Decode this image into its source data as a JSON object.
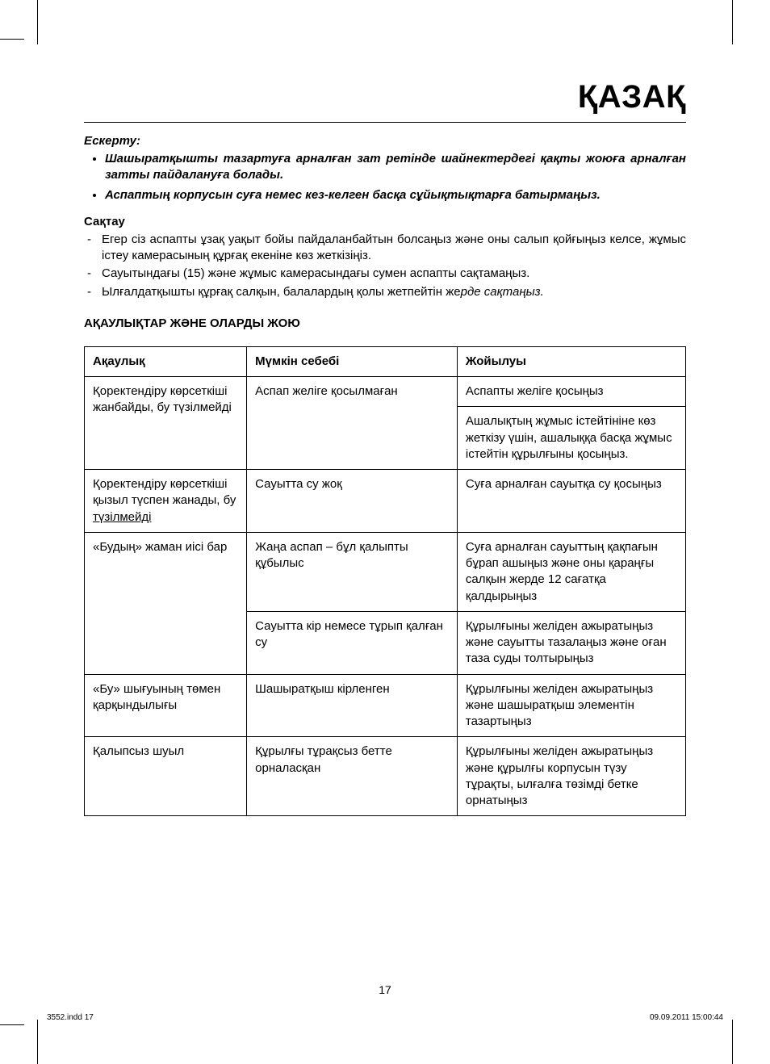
{
  "lang_title": "ҚАЗАҚ",
  "note_label": "Ескерту:",
  "note_bullets": [
    "Шашыратқышты тазартуға арналған зат ретінде шайнектердегі қақты жоюға арналған затты пайдалануға болады.",
    "Аспаптың корпусын суға немес кез-келген басқа сұйықтықтарға батырмаңыз."
  ],
  "storage_heading": "Сақтау",
  "storage_items": [
    "Егер сіз аспапты ұзақ уақыт бойы пайдаланбайтын болсаңыз және оны салып қойғыңыз келсе, жұмыс істеу камерасының құрғақ екеніне көз жеткізіңіз.",
    "Сауытындағы (15) және жұмыс камерасындағы сумен аспапты сақтамаңыз."
  ],
  "storage_mixed_prefix": "Ылғалдатқышты құрғақ салқын, балалардың қолы жетпейтін же",
  "storage_mixed_suffix": "рде сақтаңыз.",
  "troubles_heading": "АҚАУЛЫҚТАР ЖӘНЕ ОЛАРДЫ ЖОЮ",
  "table": {
    "headers": [
      "Ақаулық",
      "Мүмкін себебі",
      "Жойылуы"
    ],
    "r1": {
      "fault": "Қоректендіру көрсеткіші жанбайды, бу түзілмейді",
      "cause": "Аспап желіге қосылмаған",
      "fix1": "Аспапты желіге қосыңыз",
      "fix2": "Ашалықтың жұмыс істейтініне көз жеткізу үшін, ашалыққа басқа жұмыс істейтін құрылғыны қосыңыз."
    },
    "r2": {
      "fault_prefix": "Қоректендіру көрсеткіші қызыл түспен жанады, бу ",
      "fault_under": "түзілмейді",
      "cause": "Сауытта су жоқ",
      "fix": "Суға арналған сауытқа су қосыңыз"
    },
    "r3": {
      "fault": "«Будың» жаман иісі бар",
      "cause1": "Жаңа аспап – бұл қалыпты құбылыс",
      "fix1": "Суға арналған сауыттың қақпағын бұрап ашыңыз және оны қараңғы салқын жерде 12 сағатқа қалдырыңыз",
      "cause2": "Сауытта кір немесе тұрып қалған су",
      "fix2": "Құрылғыны желіден ажыратыңыз және сауытты тазалаңыз және оған таза суды толтырыңыз"
    },
    "r4": {
      "fault": "«Бу» шығуының төмен қарқындылығы",
      "cause": "Шашыратқыш кірленген",
      "fix": "Құрылғыны желіден ажыратыңыз және шашыратқыш элементін тазартыңыз"
    },
    "r5": {
      "fault": "Қалыпсыз шуыл",
      "cause": "Құрылғы тұрақсыз бетте орналасқан",
      "fix": "Құрылғыны желіден ажыратыңыз және құрылғы корпусын түзу тұрақты, ылғалға төзімді бетке орнатыңыз"
    }
  },
  "page_number": "17",
  "footer_left": "3552.indd   17",
  "footer_right": "09.09.2011   15:00:44"
}
